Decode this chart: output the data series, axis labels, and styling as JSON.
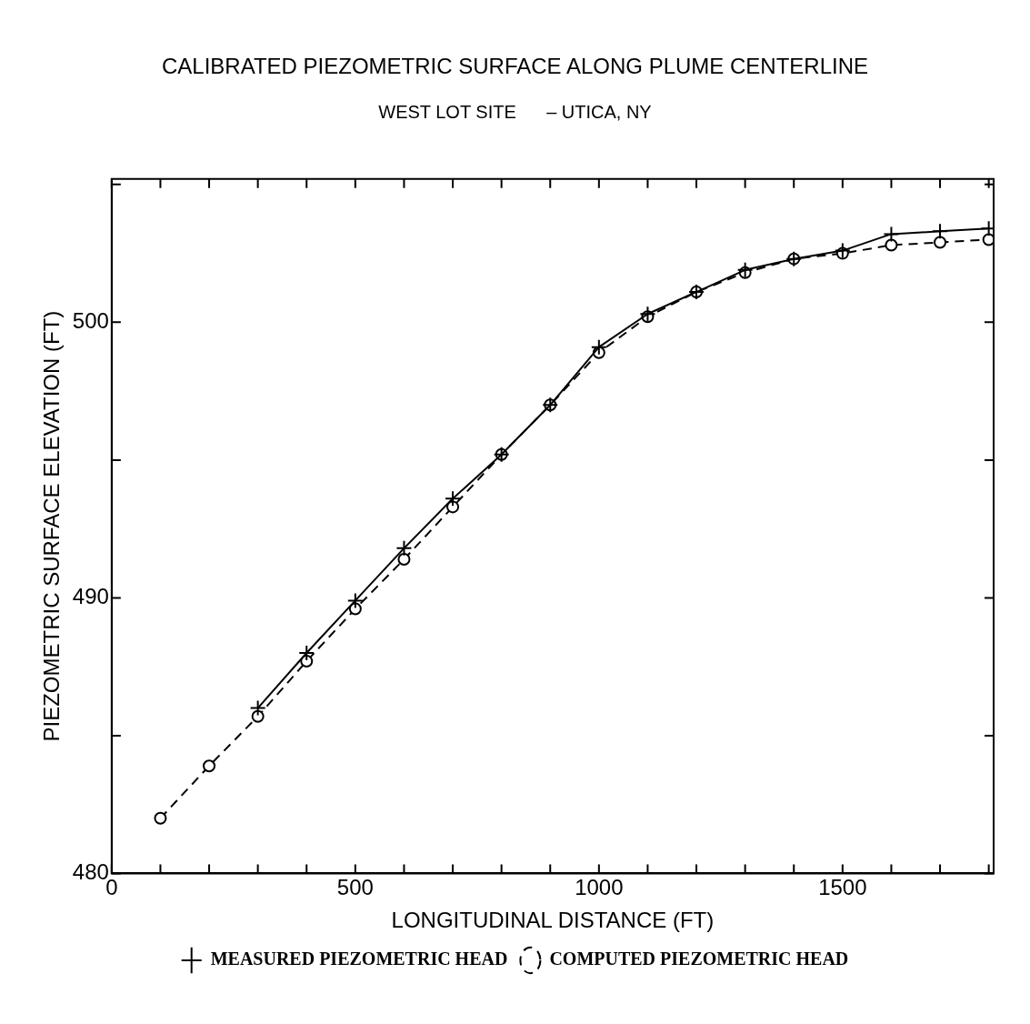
{
  "chart_data": {
    "type": "line",
    "title": "CALIBRATED PIEZOMETRIC SURFACE ALONG PLUME CENTERLINE",
    "subtitle": "WEST LOT SITE      – UTICA, NY",
    "xlabel": "LONGITUDINAL DISTANCE (FT)",
    "ylabel": "PIEZOMETRIC SURFACE ELEVATION (FT)",
    "xlim": [
      0,
      1810
    ],
    "ylim": [
      480,
      505.2
    ],
    "xticks": [
      0,
      {
        "value": 100,
        "label": null
      },
      {
        "value": 200,
        "label": null
      },
      {
        "value": 300,
        "label": null
      },
      {
        "value": 400,
        "label": null
      },
      500,
      {
        "value": 600,
        "label": null
      },
      {
        "value": 700,
        "label": null
      },
      {
        "value": 800,
        "label": null
      },
      {
        "value": 900,
        "label": null
      },
      1000,
      {
        "value": 1100,
        "label": null
      },
      {
        "value": 1200,
        "label": null
      },
      {
        "value": 1300,
        "label": null
      },
      {
        "value": 1400,
        "label": null
      },
      1500,
      {
        "value": 1600,
        "label": null
      },
      {
        "value": 1700,
        "label": null
      },
      {
        "value": 1800,
        "label": null
      }
    ],
    "yticks": [
      480,
      {
        "value": 485,
        "label": null
      },
      490,
      {
        "value": 495,
        "label": null
      },
      500,
      {
        "value": 505,
        "label": null
      }
    ],
    "grid": false,
    "legend": "bottom",
    "series": [
      {
        "name": "MEASURED PIEZOMETRIC HEAD",
        "color": "#000000",
        "marker": "cross",
        "line_style": "solid",
        "x": [
          300,
          400,
          500,
          600,
          700,
          800,
          900,
          1000,
          1100,
          1200,
          1300,
          1400,
          1500,
          1600,
          1700,
          1800
        ],
        "values": [
          486.0,
          488.0,
          489.9,
          491.8,
          493.6,
          495.2,
          497.0,
          499.1,
          500.3,
          501.1,
          501.9,
          502.3,
          502.6,
          503.2,
          503.3,
          503.4
        ]
      },
      {
        "name": "COMPUTED PIEZOMETRIC HEAD",
        "color": "#000000",
        "marker": "circle",
        "line_style": "dashed",
        "x": [
          100,
          200,
          300,
          400,
          500,
          600,
          700,
          800,
          900,
          1000,
          1100,
          1200,
          1300,
          1400,
          1500,
          1600,
          1700,
          1800
        ],
        "values": [
          482.0,
          483.9,
          485.7,
          487.7,
          489.6,
          491.4,
          493.3,
          495.2,
          497.0,
          498.9,
          500.2,
          501.1,
          501.8,
          502.3,
          502.5,
          502.8,
          502.9,
          503.0
        ]
      }
    ]
  }
}
